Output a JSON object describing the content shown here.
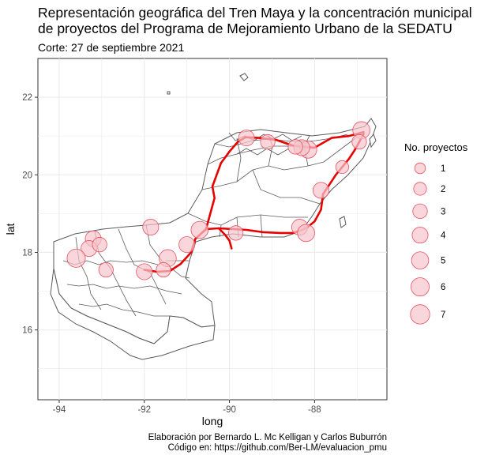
{
  "title_line1": "Representación geográfica del Tren Maya y la concentración municipal",
  "title_line2": "de proyectos del Programa de Mejoramiento Urbano de la SEDATU",
  "subtitle": "Corte: 27 de septiembre 2021",
  "caption_line1": "Elaboración por Bernardo L. Mc Kelligan y Carlos Buburrón",
  "caption_line2": "Código en: https://github.com/Ber-LM/evaluacion_pmu",
  "colors": {
    "bubble_fill": "#f7c5cc",
    "bubble_stroke": "#e8505f",
    "route": "#e60000",
    "boundary": "#5a5a5a",
    "grid": "#ebebeb"
  },
  "chart_data": {
    "type": "map",
    "xlabel": "long",
    "ylabel": "lat",
    "xlim": [
      -94.5,
      -86.3
    ],
    "ylim": [
      14.2,
      23.0
    ],
    "xticks": [
      -94,
      -92,
      -90,
      -88
    ],
    "yticks": [
      16,
      18,
      20,
      22
    ],
    "xtick_labels": [
      "-94",
      "-92",
      "-90",
      "-88"
    ],
    "ytick_labels": [
      "16",
      "18",
      "20",
      "22"
    ],
    "grid": true,
    "legend": {
      "title": "No. proyectos",
      "position": "right",
      "entries": [
        {
          "label": "1",
          "value": 1
        },
        {
          "label": "2",
          "value": 2
        },
        {
          "label": "3",
          "value": 3
        },
        {
          "label": "4",
          "value": 4
        },
        {
          "label": "5",
          "value": 5
        },
        {
          "label": "6",
          "value": 6
        },
        {
          "label": "7",
          "value": 7
        }
      ]
    },
    "projects": [
      {
        "lon": -86.9,
        "lat": 21.15,
        "n": 5
      },
      {
        "lon": -86.95,
        "lat": 20.85,
        "n": 3
      },
      {
        "lon": -87.35,
        "lat": 20.2,
        "n": 2
      },
      {
        "lon": -87.85,
        "lat": 19.6,
        "n": 4
      },
      {
        "lon": -88.15,
        "lat": 20.65,
        "n": 5
      },
      {
        "lon": -88.3,
        "lat": 20.7,
        "n": 4
      },
      {
        "lon": -88.45,
        "lat": 20.72,
        "n": 3
      },
      {
        "lon": -89.1,
        "lat": 20.85,
        "n": 3
      },
      {
        "lon": -89.6,
        "lat": 20.95,
        "n": 4
      },
      {
        "lon": -88.35,
        "lat": 18.65,
        "n": 4
      },
      {
        "lon": -88.2,
        "lat": 18.5,
        "n": 5
      },
      {
        "lon": -89.85,
        "lat": 18.5,
        "n": 3
      },
      {
        "lon": -90.7,
        "lat": 18.58,
        "n": 5
      },
      {
        "lon": -91.0,
        "lat": 18.2,
        "n": 4
      },
      {
        "lon": -91.85,
        "lat": 18.65,
        "n": 4
      },
      {
        "lon": -91.45,
        "lat": 17.85,
        "n": 5
      },
      {
        "lon": -91.55,
        "lat": 17.55,
        "n": 3
      },
      {
        "lon": -92.0,
        "lat": 17.5,
        "n": 4
      },
      {
        "lon": -93.2,
        "lat": 18.35,
        "n": 4
      },
      {
        "lon": -93.3,
        "lat": 18.1,
        "n": 4
      },
      {
        "lon": -93.05,
        "lat": 18.2,
        "n": 3
      },
      {
        "lon": -93.6,
        "lat": 17.85,
        "n": 6
      },
      {
        "lon": -92.9,
        "lat": 17.55,
        "n": 3
      }
    ],
    "route": [
      [
        -92.0,
        17.55
      ],
      [
        -91.7,
        17.5
      ],
      [
        -91.4,
        17.52
      ],
      [
        -91.15,
        17.7
      ],
      [
        -90.9,
        18.0
      ],
      [
        -90.8,
        18.35
      ],
      [
        -90.55,
        18.6
      ],
      [
        -90.25,
        18.62
      ],
      [
        -89.9,
        18.6
      ],
      [
        -89.6,
        18.58
      ],
      [
        -89.2,
        18.52
      ],
      [
        -88.8,
        18.5
      ],
      [
        -88.5,
        18.5
      ],
      [
        -88.2,
        18.62
      ],
      [
        -88.0,
        18.8
      ],
      [
        -87.85,
        19.1
      ],
      [
        -87.8,
        19.5
      ],
      [
        -87.5,
        20.0
      ],
      [
        -87.2,
        20.4
      ],
      [
        -87.05,
        20.65
      ],
      [
        -86.85,
        21.05
      ]
    ],
    "route_branch": [
      [
        -88.0,
        20.7
      ],
      [
        -88.5,
        20.75
      ],
      [
        -88.9,
        20.9
      ],
      [
        -89.3,
        20.95
      ],
      [
        -89.62,
        20.97
      ],
      [
        -89.8,
        20.85
      ],
      [
        -90.0,
        20.6
      ],
      [
        -90.2,
        20.3
      ],
      [
        -90.3,
        20.0
      ],
      [
        -90.4,
        19.7
      ],
      [
        -90.35,
        19.4
      ],
      [
        -90.45,
        19.0
      ],
      [
        -90.55,
        18.6
      ]
    ],
    "route_east": [
      [
        -88.0,
        20.7
      ],
      [
        -87.6,
        20.95
      ],
      [
        -87.2,
        21.0
      ],
      [
        -86.85,
        21.1
      ]
    ],
    "route_spur": [
      [
        -90.25,
        18.62
      ],
      [
        -90.1,
        18.45
      ],
      [
        -90.0,
        18.3
      ],
      [
        -89.95,
        18.1
      ]
    ]
  }
}
